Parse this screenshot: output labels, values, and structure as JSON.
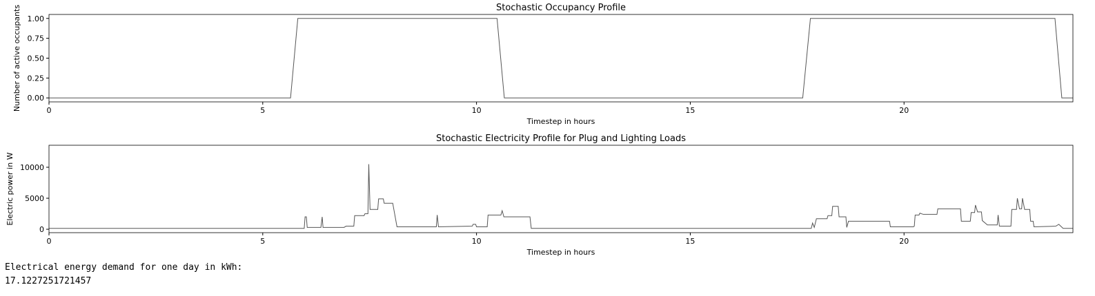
{
  "chart_data": [
    {
      "type": "line",
      "title": "Stochastic Occupancy Profile",
      "x_label": "Timestep in hours",
      "y_label": "Number of active occupants",
      "x": [
        0,
        5.65,
        5.82,
        10.48,
        10.65,
        17.63,
        17.81,
        23.53,
        23.69,
        23.95
      ],
      "values": [
        0,
        0,
        1,
        1,
        0,
        0,
        1,
        1,
        0,
        0
      ],
      "color": "#555555",
      "xlim": [
        0,
        23.95
      ],
      "xticks": [
        0,
        5,
        10,
        15,
        20
      ],
      "ylim": [
        -0.05,
        1.05
      ],
      "yticks": [
        {
          "value": 0,
          "label": "0.00"
        },
        {
          "value": 0.25,
          "label": "0.25"
        },
        {
          "value": 0.5,
          "label": "0.50"
        },
        {
          "value": 0.75,
          "label": "0.75"
        },
        {
          "value": 1,
          "label": "1.00"
        }
      ]
    },
    {
      "type": "line",
      "title": "Stochastic Electricity Profile for Plug and Lighting Loads",
      "x_label": "Timestep in hours",
      "y_label": "Electric power in W",
      "x": [
        0,
        5.97,
        5.99,
        6.02,
        6.04,
        6.36,
        6.39,
        6.41,
        6.9,
        6.95,
        7.13,
        7.15,
        7.37,
        7.39,
        7.46,
        7.48,
        7.51,
        7.69,
        7.71,
        7.82,
        7.84,
        8.04,
        8.14,
        9.06,
        9.08,
        9.11,
        9.9,
        9.92,
        9.98,
        10.0,
        10.25,
        10.27,
        10.57,
        10.6,
        10.64,
        11.25,
        11.28,
        17.83,
        17.86,
        17.9,
        17.95,
        18.2,
        18.22,
        18.31,
        18.33,
        18.46,
        18.48,
        18.64,
        18.66,
        18.7,
        19.66,
        19.68,
        20.22,
        20.24,
        20.26,
        20.35,
        20.37,
        20.45,
        20.77,
        20.79,
        21.32,
        21.34,
        21.55,
        21.57,
        21.65,
        21.67,
        21.72,
        21.81,
        21.83,
        21.95,
        22.18,
        22.2,
        22.23,
        22.5,
        22.52,
        22.63,
        22.65,
        22.7,
        22.75,
        22.77,
        22.82,
        22.94,
        22.96,
        23.02,
        23.04,
        23.55,
        23.62,
        23.72,
        23.95
      ],
      "values": [
        150,
        150,
        2000,
        2000,
        300,
        300,
        2000,
        300,
        300,
        500,
        500,
        2200,
        2200,
        2500,
        2500,
        10500,
        3200,
        3200,
        4900,
        4900,
        4200,
        4200,
        400,
        400,
        2300,
        400,
        500,
        800,
        800,
        400,
        400,
        2300,
        2300,
        3000,
        2000,
        2000,
        150,
        150,
        1000,
        300,
        1700,
        1700,
        2200,
        2200,
        3700,
        3700,
        2000,
        2000,
        300,
        1300,
        1300,
        400,
        400,
        500,
        2300,
        2300,
        2600,
        2400,
        2400,
        3300,
        3300,
        1300,
        1300,
        2700,
        2700,
        3900,
        2800,
        2800,
        1400,
        700,
        700,
        2300,
        500,
        500,
        3200,
        3200,
        5000,
        3300,
        3300,
        5000,
        3200,
        3200,
        1300,
        1300,
        400,
        500,
        800,
        150,
        150
      ],
      "color": "#555555",
      "xlim": [
        0,
        23.95
      ],
      "xticks": [
        0,
        5,
        10,
        15,
        20
      ],
      "ylim": [
        -550,
        13550
      ],
      "yticks": [
        0,
        5000,
        10000
      ]
    }
  ],
  "output": {
    "label": "Electrical energy demand for one day in kWh:",
    "value": 17.1227251721457
  }
}
